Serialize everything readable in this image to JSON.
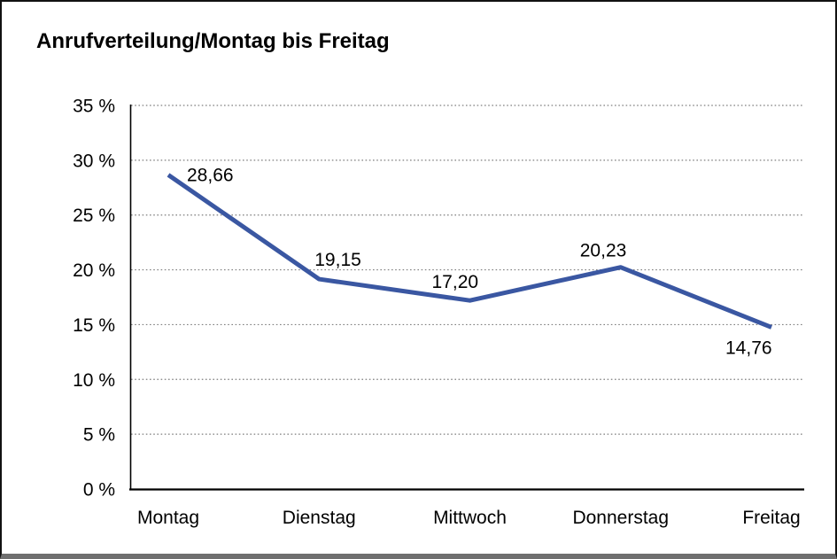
{
  "header": {
    "title": "Anrufverteilung/Montag bis Freitag"
  },
  "chart_data": {
    "type": "line",
    "title": "Anrufverteilung/Montag bis Freitag",
    "categories": [
      "Montag",
      "Dienstag",
      "Mittwoch",
      "Donnerstag",
      "Freitag"
    ],
    "values": [
      28.66,
      19.15,
      17.2,
      20.23,
      14.76
    ],
    "value_labels": [
      "28,66",
      "19,15",
      "17,20",
      "20,23",
      "14,76"
    ],
    "series_name": "Anrufverteilung",
    "xlabel": "",
    "ylabel": "",
    "ylim": [
      0,
      35
    ],
    "y_ticks": [
      {
        "value": 35,
        "label": "35 %"
      },
      {
        "value": 30,
        "label": "30 %"
      },
      {
        "value": 25,
        "label": "25 %"
      },
      {
        "value": 20,
        "label": "20 %"
      },
      {
        "value": 15,
        "label": "15 %"
      },
      {
        "value": 10,
        "label": "10 %"
      },
      {
        "value": 5,
        "label": "5 %"
      },
      {
        "value": 0,
        "label": "0 %"
      }
    ],
    "grid": "horizontal-dotted",
    "legend": "none",
    "colors": {
      "line": "#3A57A2",
      "axis": "#000000",
      "grid": "#7f7f7f",
      "text": "#000000",
      "background": "#ffffff"
    }
  }
}
